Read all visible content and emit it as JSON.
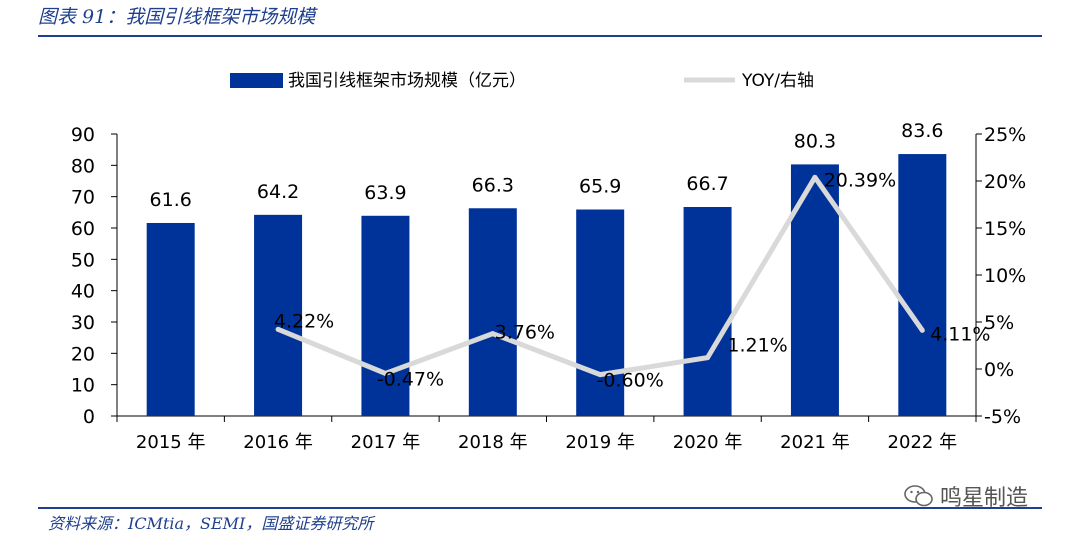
{
  "figure": {
    "title": "图表 91：我国引线框架市场规模",
    "source": "资料来源：ICMtia，SEMI，国盛证券研究所",
    "watermark": "鸣星制造"
  },
  "colors": {
    "bar": "#003399",
    "line": "#d9d9d9",
    "rule": "#1f3f8f"
  },
  "chart_data": {
    "type": "bar",
    "categories": [
      "2015 年",
      "2016 年",
      "2017 年",
      "2018 年",
      "2019 年",
      "2020 年",
      "2021 年",
      "2022 年"
    ],
    "series": [
      {
        "name": "我国引线框架市场规模（亿元）",
        "type": "bar",
        "axis": "left",
        "values": [
          61.6,
          64.2,
          63.9,
          66.3,
          65.9,
          66.7,
          80.3,
          83.6
        ],
        "labels": [
          "61.6",
          "64.2",
          "63.9",
          "66.3",
          "65.9",
          "66.7",
          "80.3",
          "83.6"
        ]
      },
      {
        "name": "YOY/右轴",
        "type": "line",
        "axis": "right",
        "values": [
          null,
          4.22,
          -0.47,
          3.76,
          -0.6,
          1.21,
          20.39,
          4.11
        ],
        "labels": [
          "",
          "4.22%",
          "-0.47%",
          "3.76%",
          "-0.60%",
          "1.21%",
          "20.39%",
          "4.11%"
        ]
      }
    ],
    "y_left": {
      "ylim": [
        0,
        90
      ],
      "ticks": [
        "0",
        "10",
        "20",
        "30",
        "40",
        "50",
        "60",
        "70",
        "80",
        "90"
      ]
    },
    "y_right": {
      "ylim": [
        -5,
        25
      ],
      "ticks": [
        "-5%",
        "0%",
        "5%",
        "10%",
        "15%",
        "20%",
        "25%"
      ]
    },
    "legend_position": "top",
    "grid": false
  }
}
